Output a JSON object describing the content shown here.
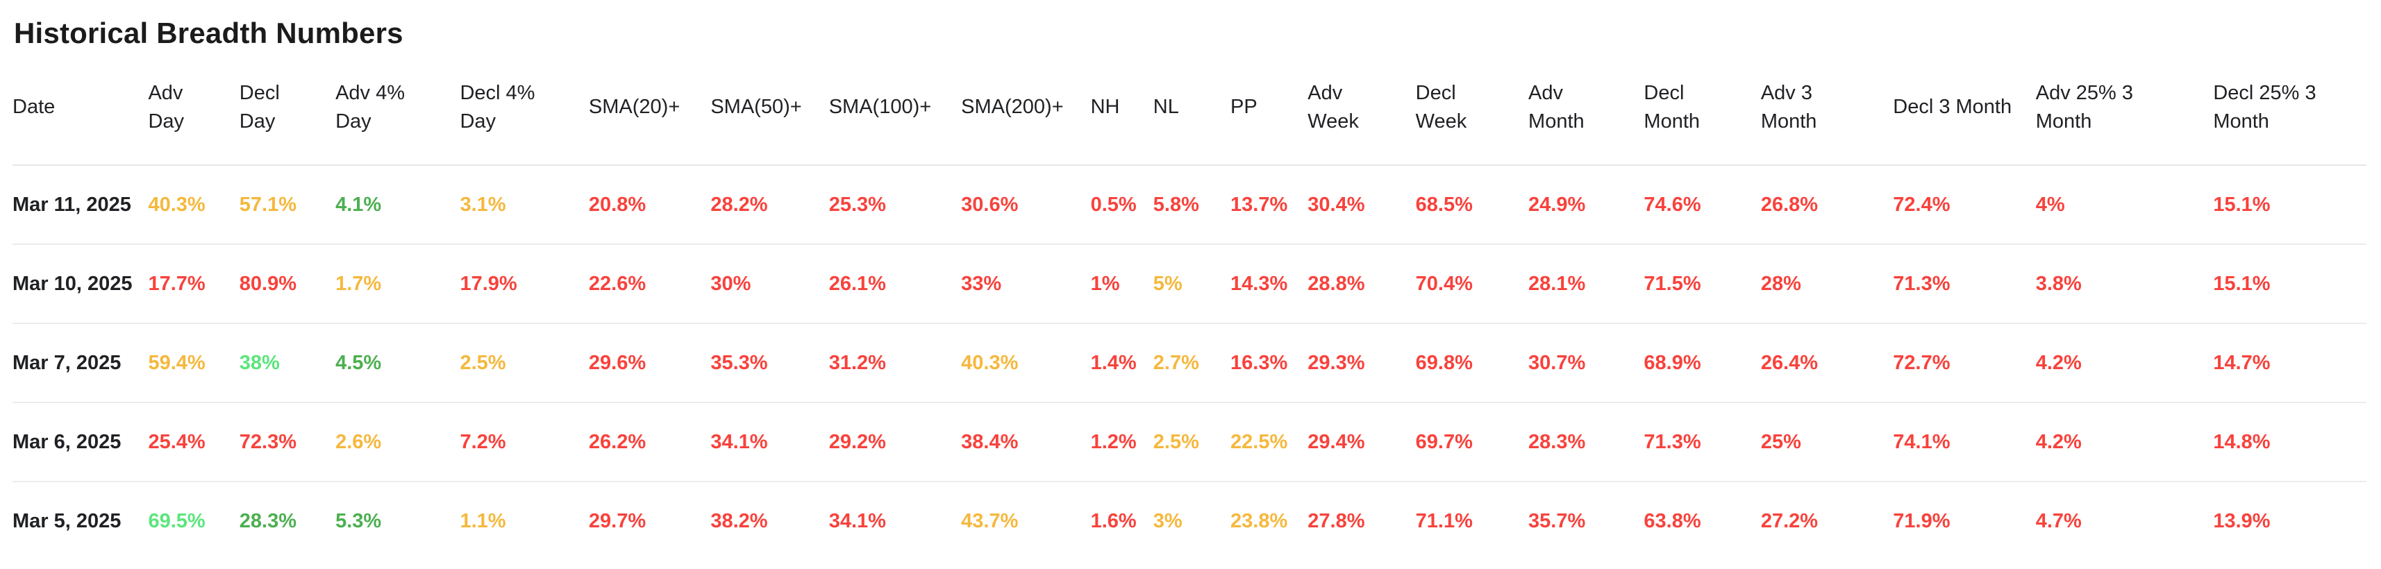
{
  "page": {
    "title": "Historical Breadth Numbers"
  },
  "colors": {
    "red": "#F8423C",
    "orange": "#F5B83D",
    "green": "#4CAF50",
    "light_green": "#5BE57C",
    "text": "#202124",
    "separator": "#ECECEC"
  },
  "table": {
    "columns": [
      {
        "id": "date",
        "label": "Date"
      },
      {
        "id": "adv_day",
        "label": "Adv Day"
      },
      {
        "id": "decl_day",
        "label": "Decl Day"
      },
      {
        "id": "adv_4_day",
        "label": "Adv 4% Day"
      },
      {
        "id": "decl_4_day",
        "label": "Decl 4% Day"
      },
      {
        "id": "sma_20",
        "label": "SMA(20)+"
      },
      {
        "id": "sma_50",
        "label": "SMA(50)+"
      },
      {
        "id": "sma_100",
        "label": "SMA(100)+"
      },
      {
        "id": "sma_200",
        "label": "SMA(200)+"
      },
      {
        "id": "nh",
        "label": "NH"
      },
      {
        "id": "nl",
        "label": "NL"
      },
      {
        "id": "pp",
        "label": "PP"
      },
      {
        "id": "adv_week",
        "label": "Adv Week"
      },
      {
        "id": "decl_week",
        "label": "Decl Week"
      },
      {
        "id": "adv_month",
        "label": "Adv Month"
      },
      {
        "id": "decl_month",
        "label": "Decl Month"
      },
      {
        "id": "adv_3_month",
        "label": "Adv 3 Month"
      },
      {
        "id": "decl_3_month",
        "label": "Decl 3 Month"
      },
      {
        "id": "adv_25_3_month",
        "label": "Adv 25% 3 Month"
      },
      {
        "id": "decl_25_3_month",
        "label": "Decl 25% 3 Month"
      }
    ],
    "rows": [
      {
        "date": "Mar 11, 2025",
        "cells": [
          {
            "v": "40.3%",
            "c": "orange"
          },
          {
            "v": "57.1%",
            "c": "orange"
          },
          {
            "v": "4.1%",
            "c": "green"
          },
          {
            "v": "3.1%",
            "c": "orange"
          },
          {
            "v": "20.8%",
            "c": "red"
          },
          {
            "v": "28.2%",
            "c": "red"
          },
          {
            "v": "25.3%",
            "c": "red"
          },
          {
            "v": "30.6%",
            "c": "red"
          },
          {
            "v": "0.5%",
            "c": "red"
          },
          {
            "v": "5.8%",
            "c": "red"
          },
          {
            "v": "13.7%",
            "c": "red"
          },
          {
            "v": "30.4%",
            "c": "red"
          },
          {
            "v": "68.5%",
            "c": "red"
          },
          {
            "v": "24.9%",
            "c": "red"
          },
          {
            "v": "74.6%",
            "c": "red"
          },
          {
            "v": "26.8%",
            "c": "red"
          },
          {
            "v": "72.4%",
            "c": "red"
          },
          {
            "v": "4%",
            "c": "red"
          },
          {
            "v": "15.1%",
            "c": "red"
          }
        ]
      },
      {
        "date": "Mar 10, 2025",
        "cells": [
          {
            "v": "17.7%",
            "c": "red"
          },
          {
            "v": "80.9%",
            "c": "red"
          },
          {
            "v": "1.7%",
            "c": "orange"
          },
          {
            "v": "17.9%",
            "c": "red"
          },
          {
            "v": "22.6%",
            "c": "red"
          },
          {
            "v": "30%",
            "c": "red"
          },
          {
            "v": "26.1%",
            "c": "red"
          },
          {
            "v": "33%",
            "c": "red"
          },
          {
            "v": "1%",
            "c": "red"
          },
          {
            "v": "5%",
            "c": "orange"
          },
          {
            "v": "14.3%",
            "c": "red"
          },
          {
            "v": "28.8%",
            "c": "red"
          },
          {
            "v": "70.4%",
            "c": "red"
          },
          {
            "v": "28.1%",
            "c": "red"
          },
          {
            "v": "71.5%",
            "c": "red"
          },
          {
            "v": "28%",
            "c": "red"
          },
          {
            "v": "71.3%",
            "c": "red"
          },
          {
            "v": "3.8%",
            "c": "red"
          },
          {
            "v": "15.1%",
            "c": "red"
          }
        ]
      },
      {
        "date": "Mar 7, 2025",
        "cells": [
          {
            "v": "59.4%",
            "c": "orange"
          },
          {
            "v": "38%",
            "c": "light_green"
          },
          {
            "v": "4.5%",
            "c": "green"
          },
          {
            "v": "2.5%",
            "c": "orange"
          },
          {
            "v": "29.6%",
            "c": "red"
          },
          {
            "v": "35.3%",
            "c": "red"
          },
          {
            "v": "31.2%",
            "c": "red"
          },
          {
            "v": "40.3%",
            "c": "orange"
          },
          {
            "v": "1.4%",
            "c": "red"
          },
          {
            "v": "2.7%",
            "c": "orange"
          },
          {
            "v": "16.3%",
            "c": "red"
          },
          {
            "v": "29.3%",
            "c": "red"
          },
          {
            "v": "69.8%",
            "c": "red"
          },
          {
            "v": "30.7%",
            "c": "red"
          },
          {
            "v": "68.9%",
            "c": "red"
          },
          {
            "v": "26.4%",
            "c": "red"
          },
          {
            "v": "72.7%",
            "c": "red"
          },
          {
            "v": "4.2%",
            "c": "red"
          },
          {
            "v": "14.7%",
            "c": "red"
          }
        ]
      },
      {
        "date": "Mar 6, 2025",
        "cells": [
          {
            "v": "25.4%",
            "c": "red"
          },
          {
            "v": "72.3%",
            "c": "red"
          },
          {
            "v": "2.6%",
            "c": "orange"
          },
          {
            "v": "7.2%",
            "c": "red"
          },
          {
            "v": "26.2%",
            "c": "red"
          },
          {
            "v": "34.1%",
            "c": "red"
          },
          {
            "v": "29.2%",
            "c": "red"
          },
          {
            "v": "38.4%",
            "c": "red"
          },
          {
            "v": "1.2%",
            "c": "red"
          },
          {
            "v": "2.5%",
            "c": "orange"
          },
          {
            "v": "22.5%",
            "c": "orange"
          },
          {
            "v": "29.4%",
            "c": "red"
          },
          {
            "v": "69.7%",
            "c": "red"
          },
          {
            "v": "28.3%",
            "c": "red"
          },
          {
            "v": "71.3%",
            "c": "red"
          },
          {
            "v": "25%",
            "c": "red"
          },
          {
            "v": "74.1%",
            "c": "red"
          },
          {
            "v": "4.2%",
            "c": "red"
          },
          {
            "v": "14.8%",
            "c": "red"
          }
        ]
      },
      {
        "date": "Mar 5, 2025",
        "cells": [
          {
            "v": "69.5%",
            "c": "light_green"
          },
          {
            "v": "28.3%",
            "c": "green"
          },
          {
            "v": "5.3%",
            "c": "green"
          },
          {
            "v": "1.1%",
            "c": "orange"
          },
          {
            "v": "29.7%",
            "c": "red"
          },
          {
            "v": "38.2%",
            "c": "red"
          },
          {
            "v": "34.1%",
            "c": "red"
          },
          {
            "v": "43.7%",
            "c": "orange"
          },
          {
            "v": "1.6%",
            "c": "red"
          },
          {
            "v": "3%",
            "c": "orange"
          },
          {
            "v": "23.8%",
            "c": "orange"
          },
          {
            "v": "27.8%",
            "c": "red"
          },
          {
            "v": "71.1%",
            "c": "red"
          },
          {
            "v": "35.7%",
            "c": "red"
          },
          {
            "v": "63.8%",
            "c": "red"
          },
          {
            "v": "27.2%",
            "c": "red"
          },
          {
            "v": "71.9%",
            "c": "red"
          },
          {
            "v": "4.7%",
            "c": "red"
          },
          {
            "v": "13.9%",
            "c": "red"
          }
        ]
      }
    ]
  }
}
